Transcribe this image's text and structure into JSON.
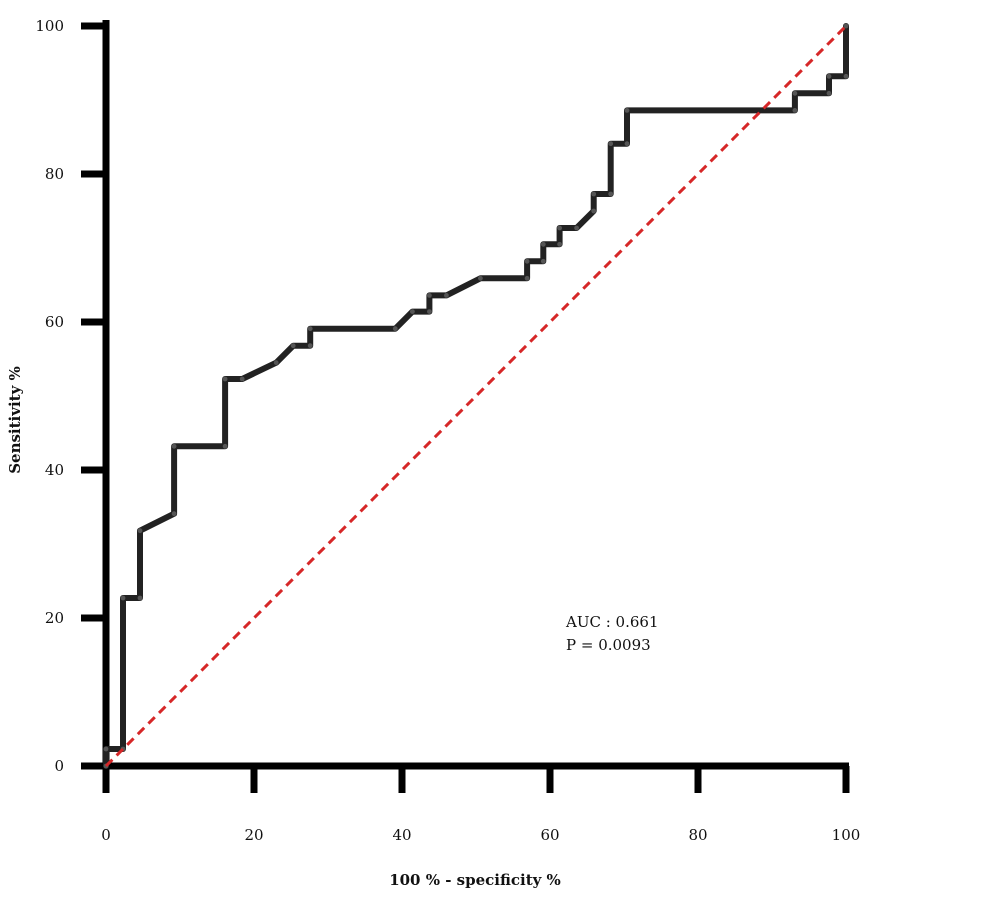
{
  "chart_data": {
    "type": "line",
    "title": "",
    "xlabel": "100 % - specificity %",
    "ylabel": "Sensitivity %",
    "xlim": [
      0,
      100
    ],
    "ylim": [
      0,
      100
    ],
    "x_ticks": [
      "0",
      "20",
      "40",
      "60",
      "80",
      "100"
    ],
    "y_ticks": [
      "0",
      "20",
      "40",
      "60",
      "80",
      "100"
    ],
    "grid": false,
    "legend": "none",
    "annotations": [
      "AUC : 0.661",
      "P = 0.0093"
    ],
    "colors": {
      "roc": "#222222",
      "reference": "#d62728",
      "axis": "#000000"
    },
    "series": [
      {
        "style": "solid",
        "x": [
          0,
          0,
          2.3,
          2.3,
          4.6,
          4.6,
          9.2,
          9.2,
          16.1,
          16.1,
          18.4,
          23.0,
          25.3,
          27.6,
          27.6,
          39.1,
          41.4,
          43.7,
          43.7,
          46.0,
          50.6,
          56.9,
          56.9,
          59.1,
          59.1,
          61.3,
          61.3,
          63.6,
          65.9,
          65.9,
          68.2,
          68.2,
          70.4,
          70.4,
          93.1,
          93.1,
          97.7,
          97.7,
          100,
          100
        ],
        "y": [
          0,
          2.3,
          2.3,
          22.7,
          22.7,
          31.8,
          34.1,
          43.2,
          43.2,
          52.3,
          52.3,
          54.5,
          56.8,
          56.8,
          59.1,
          59.1,
          61.4,
          61.4,
          63.6,
          63.6,
          65.9,
          65.9,
          68.2,
          68.2,
          70.5,
          70.5,
          72.7,
          72.7,
          75.0,
          77.3,
          77.3,
          84.1,
          84.1,
          88.6,
          88.6,
          90.9,
          90.9,
          93.2,
          93.2,
          100
        ]
      },
      {
        "style": "dashed",
        "x": [
          0,
          100
        ],
        "y": [
          0,
          100
        ]
      }
    ]
  }
}
